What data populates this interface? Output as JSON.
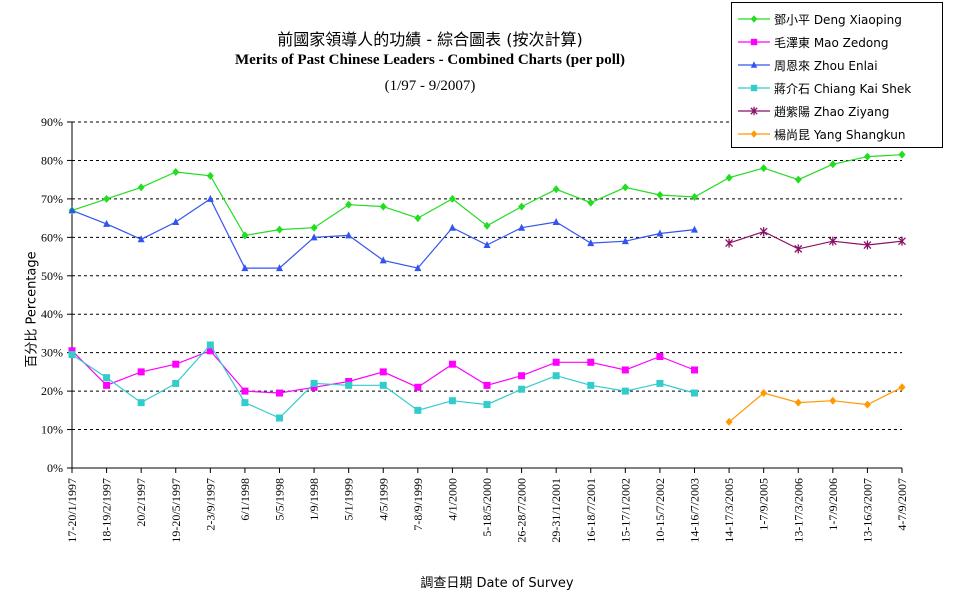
{
  "chart_data": {
    "type": "line",
    "title": "前國家領導人的功績 - 綜合圖表 (按次計算)",
    "subtitle": "Merits of Past Chinese Leaders - Combined Charts (per poll)",
    "period": "(1/97 - 9/2007)",
    "xlabel": "調查日期 Date of Survey",
    "ylabel": "百分比 Percentage",
    "ylim": [
      0,
      90
    ],
    "yticks": [
      "0%",
      "10%",
      "20%",
      "30%",
      "40%",
      "50%",
      "60%",
      "70%",
      "80%",
      "90%"
    ],
    "grid": true,
    "legend_position": "top-right",
    "categories": [
      "17-20/1/1997",
      "18-19/2/1997",
      "20/2/1997",
      "19-20/5/1997",
      "2-3/9/1997",
      "6/1/1998",
      "5/5/1998",
      "1/9/1998",
      "5/1/1999",
      "4/5/1999",
      "7-8/9/1999",
      "4/1/2000",
      "5-18/5/2000",
      "26-28/7/2000",
      "29-31/1/2001",
      "16-18/7/2001",
      "15-17/1/2002",
      "10-15/7/2002",
      "14-16/7/2003",
      "14-17/3/2005",
      "1-7/9/2005",
      "13-17/3/2006",
      "1-7/9/2006",
      "13-16/3/2007",
      "4-7/9/2007"
    ],
    "series": [
      {
        "name": "鄧小平 Deng Xiaoping",
        "color": "#22dd22",
        "marker": "diamond",
        "values": [
          67,
          70,
          73,
          77,
          76,
          60.5,
          62,
          62.5,
          68.5,
          68,
          65,
          70,
          63,
          68,
          72.5,
          69,
          73,
          71,
          70.5,
          75.5,
          78,
          75,
          79,
          81,
          81.5
        ]
      },
      {
        "name": "毛澤東 Mao Zedong",
        "color": "#ff00ff",
        "marker": "square",
        "values": [
          30.5,
          21.5,
          25,
          27,
          30.5,
          20,
          19.5,
          21,
          22.5,
          25,
          21,
          27,
          21.5,
          24,
          27.5,
          27.5,
          25.5,
          29,
          25.5,
          null,
          null,
          null,
          null,
          null,
          null
        ]
      },
      {
        "name": "周恩來 Zhou Enlai",
        "color": "#3355ee",
        "marker": "triangle",
        "values": [
          67,
          63.5,
          59.5,
          64,
          70,
          52,
          52,
          60,
          60.5,
          54,
          52,
          62.5,
          58,
          62.5,
          64,
          58.5,
          59,
          61,
          62,
          null,
          null,
          null,
          null,
          null,
          null
        ]
      },
      {
        "name": "蔣介石 Chiang Kai Shek",
        "color": "#33cccc",
        "marker": "square",
        "values": [
          29.5,
          23.5,
          17,
          22,
          32,
          17,
          13,
          22,
          21.5,
          21.5,
          15,
          17.5,
          16.5,
          20.5,
          24,
          21.5,
          20,
          22,
          19.5,
          null,
          null,
          null,
          null,
          null,
          null
        ]
      },
      {
        "name": "趙紫陽 Zhao Ziyang",
        "color": "#881166",
        "marker": "star",
        "values": [
          null,
          null,
          null,
          null,
          null,
          null,
          null,
          null,
          null,
          null,
          null,
          null,
          null,
          null,
          null,
          null,
          null,
          null,
          null,
          58.5,
          61.5,
          57,
          59,
          58,
          59
        ]
      },
      {
        "name": "楊尚昆 Yang Shangkun",
        "color": "#ff9900",
        "marker": "diamond",
        "values": [
          null,
          null,
          null,
          null,
          null,
          null,
          null,
          null,
          null,
          null,
          null,
          null,
          null,
          null,
          null,
          null,
          null,
          null,
          null,
          12,
          19.5,
          17,
          17.5,
          16.5,
          21
        ]
      }
    ]
  }
}
